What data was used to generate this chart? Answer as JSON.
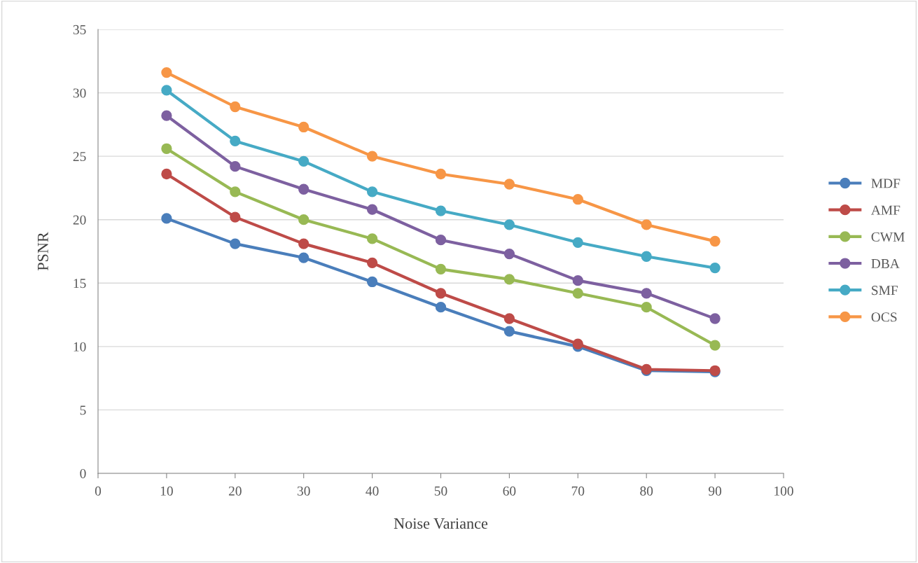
{
  "chart_data": {
    "type": "line",
    "xlabel": "Noise Variance",
    "ylabel": "PSNR",
    "x": [
      10,
      20,
      30,
      40,
      50,
      60,
      70,
      80,
      90
    ],
    "series": [
      {
        "name": "MDF",
        "color": "#4a7ebb",
        "values": [
          20.1,
          18.1,
          17.0,
          15.1,
          13.1,
          11.2,
          10.0,
          8.1,
          8.0
        ]
      },
      {
        "name": "AMF",
        "color": "#be4b48",
        "values": [
          23.6,
          20.2,
          18.1,
          16.6,
          14.2,
          12.2,
          10.2,
          8.2,
          8.1
        ]
      },
      {
        "name": "CWM",
        "color": "#98b954",
        "values": [
          25.6,
          22.2,
          20.0,
          18.5,
          16.1,
          15.3,
          14.2,
          13.1,
          10.1
        ]
      },
      {
        "name": "DBA",
        "color": "#7d60a0",
        "values": [
          28.2,
          24.2,
          22.4,
          20.8,
          18.4,
          17.3,
          15.2,
          14.2,
          12.2
        ]
      },
      {
        "name": "SMF",
        "color": "#46aac5",
        "values": [
          30.2,
          26.2,
          24.6,
          22.2,
          20.7,
          19.6,
          18.2,
          17.1,
          16.2
        ]
      },
      {
        "name": "OCS",
        "color": "#f79646",
        "values": [
          31.6,
          28.9,
          27.3,
          25.0,
          23.6,
          22.8,
          21.6,
          19.6,
          18.3
        ]
      }
    ],
    "xlim": [
      0,
      100
    ],
    "xticks": [
      0,
      10,
      20,
      30,
      40,
      50,
      60,
      70,
      80,
      90,
      100
    ],
    "ylim": [
      0,
      35
    ],
    "yticks": [
      0,
      5,
      10,
      15,
      20,
      25,
      30,
      35
    ],
    "grid": "y",
    "legend": "right",
    "marker": "circle",
    "line_style": "solid"
  }
}
